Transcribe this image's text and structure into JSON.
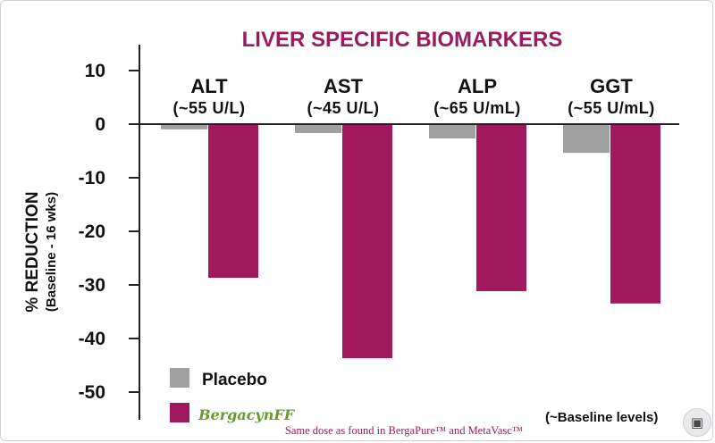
{
  "chart_data": {
    "type": "bar",
    "title": "LIVER SPECIFIC BIOMARKERS",
    "ylabel": "% REDUCTION",
    "ylabel_sub": "(Baseline - 16 wks)",
    "ylim": [
      -55,
      13
    ],
    "yticks": [
      10,
      0,
      -10,
      -20,
      -30,
      -40,
      -50
    ],
    "grid": false,
    "categories": [
      "ALT",
      "AST",
      "ALP",
      "GGT"
    ],
    "category_baselines": [
      "(~55 U/L)",
      "(~45 U/L)",
      "(~65 U/mL)",
      "(~55 U/mL)"
    ],
    "series": [
      {
        "name": "Placebo",
        "color": "#a0a0a0",
        "values": [
          -0.8,
          -1.5,
          -2.5,
          -5.2
        ]
      },
      {
        "name": "BergacynFF",
        "color": "#a0185e",
        "values": [
          -28.5,
          -43.5,
          -31,
          -33.3
        ]
      }
    ],
    "legend_placement": "bottom-left",
    "baseline_note": "(~Baseline levels)",
    "footnote": "Same dose as found in BergaPure™ and MetaVasc™"
  },
  "ui": {
    "corner_icon": "scan-text-icon"
  }
}
